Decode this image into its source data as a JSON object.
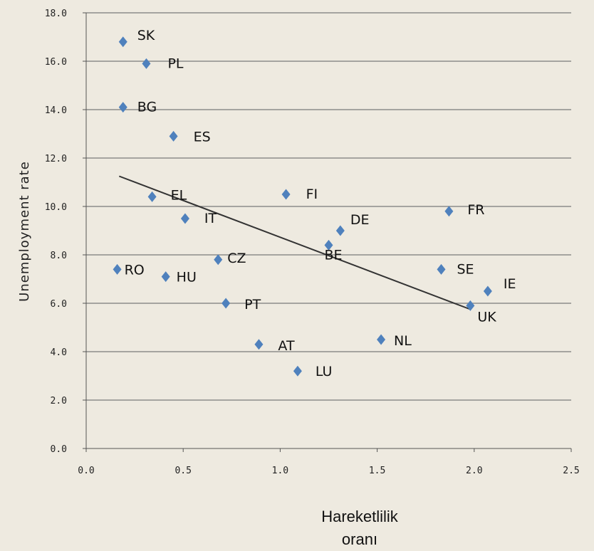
{
  "chart_data": {
    "type": "scatter",
    "title": "",
    "xlabel_lines": [
      "Hareketlilik",
      "oranı"
    ],
    "ylabel": "Unemployment rate",
    "xlim": [
      0,
      2.5
    ],
    "ylim": [
      0,
      18
    ],
    "x_ticks": [
      "0.0",
      "0.5",
      "1.0",
      "1.5",
      "2.0",
      "2.5"
    ],
    "y_ticks": [
      "0.0",
      "2.0",
      "4.0",
      "6.0",
      "8.0",
      "10.0",
      "12.0",
      "14.0",
      "16.0",
      "18.0"
    ],
    "grid": "horizontal",
    "marker_color": "#4f81bd",
    "trendline": {
      "x": [
        0.17,
        1.98
      ],
      "y": [
        11.25,
        5.75
      ],
      "color": "#333333"
    },
    "points": [
      {
        "label": "SK",
        "x": 0.19,
        "y": 16.8
      },
      {
        "label": "PL",
        "x": 0.31,
        "y": 15.9
      },
      {
        "label": "BG",
        "x": 0.19,
        "y": 14.1
      },
      {
        "label": "ES",
        "x": 0.45,
        "y": 12.9
      },
      {
        "label": "EL",
        "x": 0.34,
        "y": 10.4
      },
      {
        "label": "IT",
        "x": 0.51,
        "y": 9.5
      },
      {
        "label": "FI",
        "x": 1.03,
        "y": 10.5
      },
      {
        "label": "DE",
        "x": 1.31,
        "y": 9.0
      },
      {
        "label": "FR",
        "x": 1.87,
        "y": 9.8
      },
      {
        "label": "BE",
        "x": 1.25,
        "y": 8.4
      },
      {
        "label": "CZ",
        "x": 0.68,
        "y": 7.8
      },
      {
        "label": "RO",
        "x": 0.16,
        "y": 7.4
      },
      {
        "label": "HU",
        "x": 0.41,
        "y": 7.1
      },
      {
        "label": "SE",
        "x": 1.83,
        "y": 7.4
      },
      {
        "label": "IE",
        "x": 2.07,
        "y": 6.5
      },
      {
        "label": "UK",
        "x": 1.98,
        "y": 5.9
      },
      {
        "label": "PT",
        "x": 0.72,
        "y": 6.0
      },
      {
        "label": "NL",
        "x": 1.52,
        "y": 4.5
      },
      {
        "label": "AT",
        "x": 0.89,
        "y": 4.3
      },
      {
        "label": "LU",
        "x": 1.09,
        "y": 3.2
      }
    ]
  }
}
